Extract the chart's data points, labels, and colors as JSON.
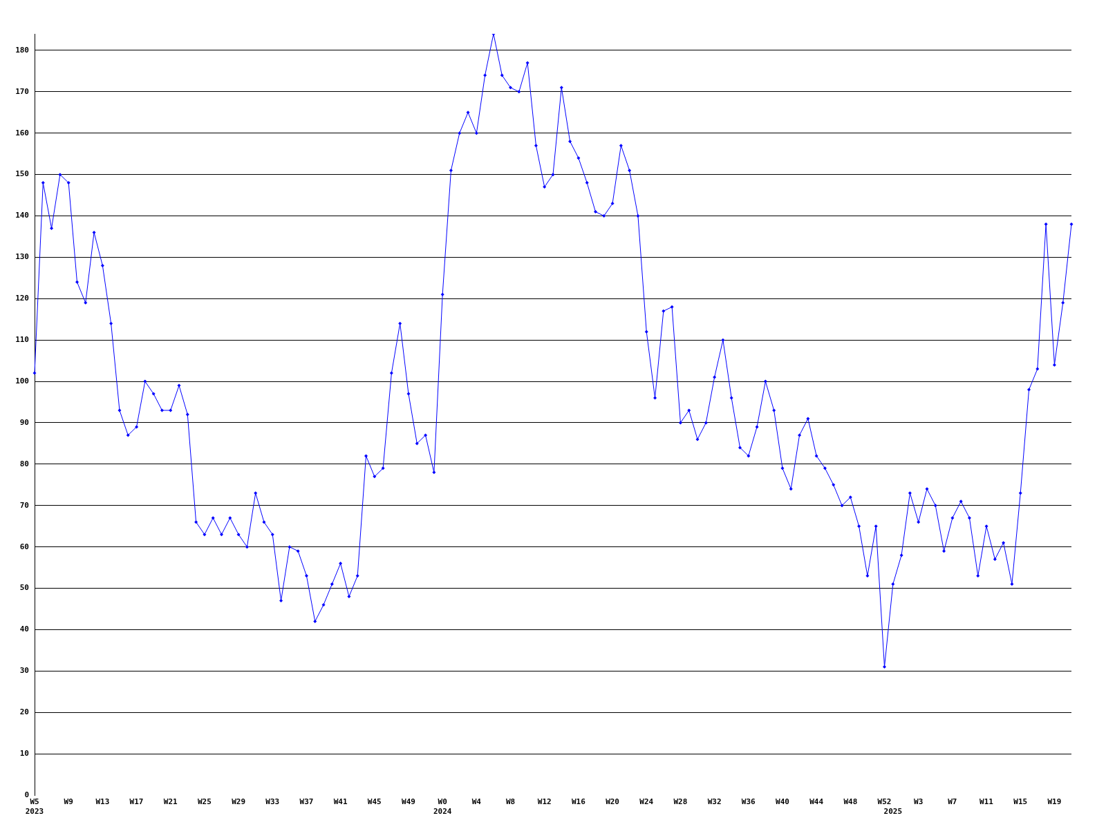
{
  "chart_data": {
    "type": "line",
    "categories": [
      "W5\n2023",
      null,
      null,
      null,
      "W9",
      null,
      null,
      null,
      "W13",
      null,
      null,
      null,
      "W17",
      null,
      null,
      null,
      "W21",
      null,
      null,
      null,
      "W25",
      null,
      null,
      null,
      "W29",
      null,
      null,
      null,
      "W33",
      null,
      null,
      null,
      "W37",
      null,
      null,
      null,
      "W41",
      null,
      null,
      null,
      "W45",
      null,
      null,
      null,
      "W49",
      null,
      null,
      null,
      "W0\n2024",
      null,
      null,
      null,
      "W4",
      null,
      null,
      null,
      "W8",
      null,
      null,
      null,
      "W12",
      null,
      null,
      null,
      "W16",
      null,
      null,
      null,
      "W20",
      null,
      null,
      null,
      "W24",
      null,
      null,
      null,
      "W28",
      null,
      null,
      null,
      "W32",
      null,
      null,
      null,
      "W36",
      null,
      null,
      null,
      "W40",
      null,
      null,
      null,
      "W44",
      null,
      null,
      null,
      "W48",
      null,
      null,
      null,
      "W52",
      "\n2025",
      null,
      null,
      "W3",
      null,
      null,
      null,
      "W7",
      null,
      null,
      null,
      "W11",
      null,
      null,
      null,
      "W15",
      null,
      null,
      null,
      "W19",
      null,
      null
    ],
    "series": [
      {
        "color": "#0000ff",
        "values": [
          102,
          148,
          137,
          150,
          148,
          124,
          119,
          136,
          128,
          114,
          93,
          87,
          89,
          100,
          97,
          93,
          93,
          99,
          92,
          66,
          63,
          67,
          63,
          67,
          63,
          60,
          73,
          66,
          63,
          47,
          60,
          59,
          53,
          42,
          46,
          51,
          56,
          48,
          53,
          82,
          77,
          79,
          102,
          114,
          97,
          85,
          87,
          78,
          121,
          151,
          160,
          165,
          160,
          174,
          184,
          174,
          171,
          170,
          177,
          157,
          147,
          150,
          171,
          158,
          154,
          148,
          141,
          140,
          143,
          157,
          151,
          140,
          112,
          96,
          117,
          118,
          90,
          93,
          86,
          90,
          101,
          110,
          96,
          84,
          82,
          89,
          100,
          93,
          79,
          74,
          87,
          91,
          82,
          79,
          75,
          70,
          72,
          65,
          53,
          65,
          31,
          51,
          58,
          73,
          66,
          74,
          70,
          59,
          67,
          71,
          67,
          53,
          65,
          57,
          61,
          51,
          73,
          98,
          103,
          138,
          104,
          119,
          138
        ]
      }
    ],
    "ylim": [
      0,
      184
    ],
    "yticks": [
      0,
      10,
      20,
      30,
      40,
      50,
      60,
      70,
      80,
      90,
      100,
      110,
      120,
      130,
      140,
      150,
      160,
      170,
      180
    ],
    "grid": "y",
    "marker": "diamond",
    "line_style": "solid"
  }
}
